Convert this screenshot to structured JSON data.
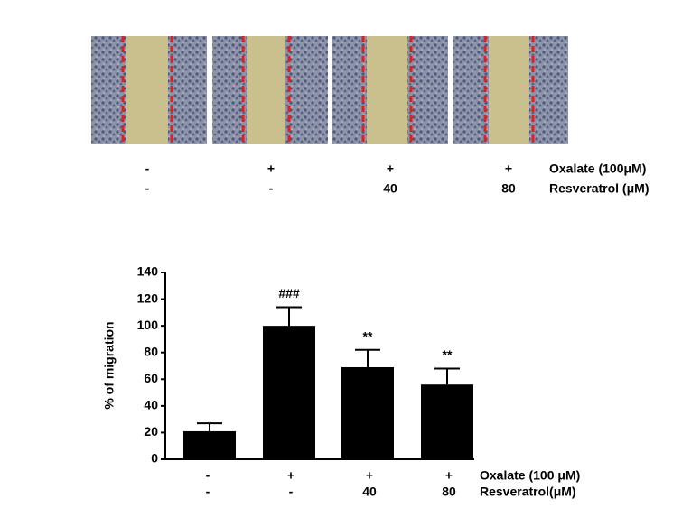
{
  "image_panel": {
    "rows": [
      {
        "name": "Oxalate (100μM)",
        "labels": [
          "-",
          "+",
          "+",
          "+"
        ]
      },
      {
        "name": "Resveratrol (μM)",
        "labels": [
          "-",
          "-",
          "40",
          "80"
        ]
      }
    ]
  },
  "chart_data": {
    "type": "bar",
    "ylabel": "% of migration",
    "category_rows": [
      {
        "name": "Oxalate (100 μM)",
        "labels": [
          "-",
          "+",
          "+",
          "+"
        ]
      },
      {
        "name": "Resveratrol(μM)",
        "labels": [
          "-",
          "-",
          "40",
          "80"
        ]
      }
    ],
    "values": [
      21,
      100,
      69,
      56
    ],
    "errors": [
      6,
      14,
      13,
      12
    ],
    "annotations": [
      null,
      "###",
      "**",
      "**"
    ],
    "color": "#000000",
    "ylim": [
      0,
      140
    ],
    "yticks": [
      0,
      20,
      40,
      60,
      80,
      100,
      120,
      140
    ]
  }
}
